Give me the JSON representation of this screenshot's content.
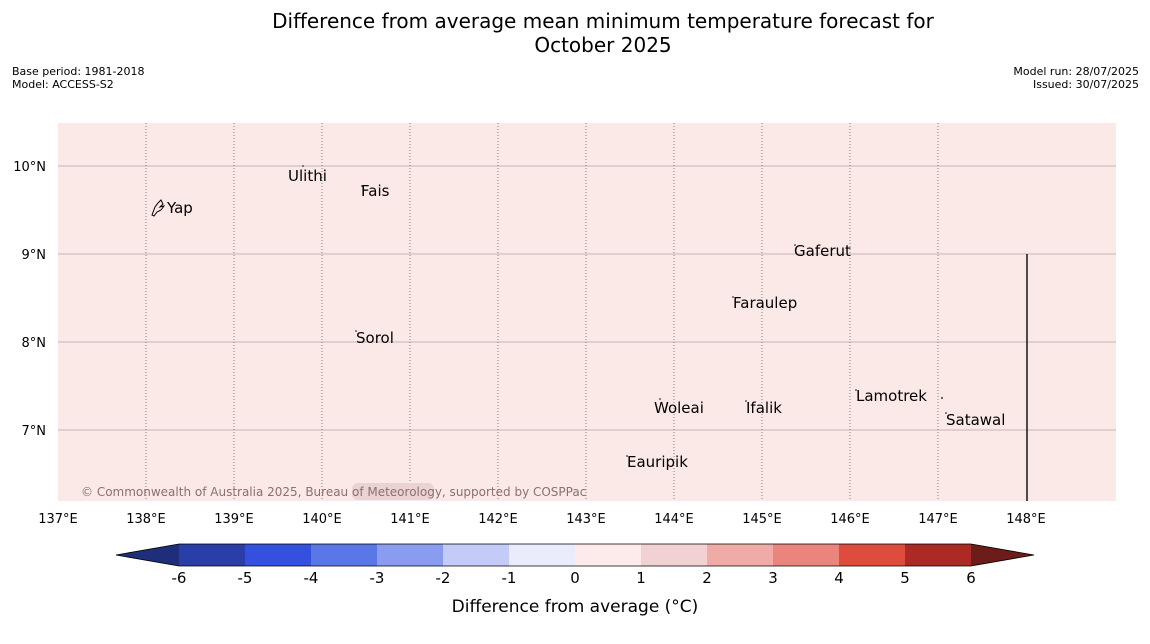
{
  "title_line1": "Difference from average mean minimum temperature forecast for",
  "title_line2": "October 2025",
  "meta_left": {
    "base_period": "Base period: 1981-2018",
    "model": "Model: ACCESS-S2"
  },
  "meta_right": {
    "model_run": "Model run: 28/07/2025",
    "issued": "Issued: 30/07/2025"
  },
  "map": {
    "fill_color": "#fbe9e7",
    "lon_labels": [
      "137°E",
      "138°E",
      "139°E",
      "140°E",
      "141°E",
      "142°E",
      "143°E",
      "144°E",
      "145°E",
      "146°E",
      "147°E",
      "148°E"
    ],
    "lat_labels": [
      "10°N",
      "9°N",
      "8°N",
      "7°N"
    ],
    "places": [
      "Ulithi",
      "Fais",
      "Yap",
      "Gaferut",
      "Faraulep",
      "Sorol",
      "Woleai",
      "Ifalik",
      "Lamotrek",
      "Satawal",
      "Eauripik"
    ],
    "copyright": "© Commonwealth of Australia 2025, Bureau of Meteorology, supported by COSPPac"
  },
  "colorbar": {
    "label": "Difference from average (°C)",
    "ticks": [
      "-6",
      "-5",
      "-4",
      "-3",
      "-2",
      "-1",
      "0",
      "1",
      "2",
      "3",
      "4",
      "5",
      "6"
    ],
    "colors": [
      "#2a3ea8",
      "#3450df",
      "#5b76e6",
      "#8a9cef",
      "#c3cbf6",
      "#eaecfc",
      "#fdeaea",
      "#f2d1d3",
      "#efaca7",
      "#e9857d",
      "#de4c3d",
      "#ab2a24"
    ],
    "under_color": "#1f2e7a",
    "over_color": "#6e1c19"
  }
}
